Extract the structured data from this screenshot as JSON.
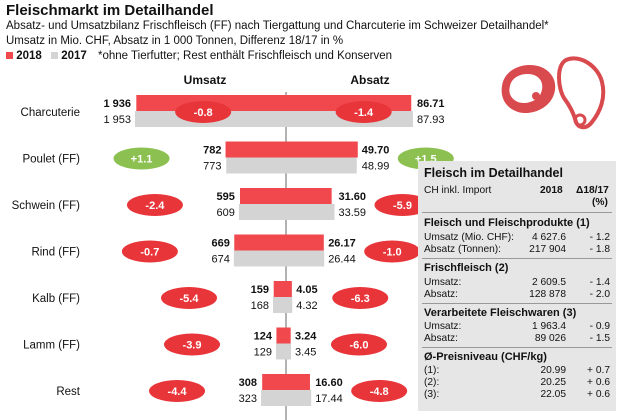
{
  "header": {
    "title": "Fleischmarkt im Detailhandel",
    "subtitle1": "Absatz- und Umsatzbilanz Frischfleisch (FF) nach Tiergattung und Charcuterie im Schweizer Detailhandel*",
    "subtitle2": "Umsatz in Mio. CHF, Absatz in 1 000 Tonnen, Differenz 18/17 in %",
    "legend_2018": "2018",
    "legend_2017": "2017",
    "footnote": "*ohne Tierfutter; Rest enthält Frischfleisch und Konserven"
  },
  "colors": {
    "y2018": "#f0484d",
    "y2017": "#d4d4d4",
    "pos": "#8cc050",
    "neg": "#e8353a",
    "panel": "#e6e6e6",
    "icon": "#d94a4f"
  },
  "chart_data": {
    "type": "bar",
    "umsatz_label": "Umsatz",
    "absatz_label": "Absatz",
    "rows": [
      {
        "name": "Charcuterie",
        "u2018": 1936,
        "u2017": 1953,
        "u2018_label": "1 936",
        "u2017_label": "1 953",
        "u_diff": "-0.8",
        "a2018": 86.71,
        "a2017": 87.93,
        "a2018_label": "86.71",
        "a2017_label": "87.93",
        "a_diff": "-1.4"
      },
      {
        "name": "Poulet (FF)",
        "u2018": 782,
        "u2017": 773,
        "u2018_label": "782",
        "u2017_label": "773",
        "u_diff": "+1.1",
        "a2018": 49.7,
        "a2017": 48.99,
        "a2018_label": "49.70",
        "a2017_label": "48.99",
        "a_diff": "+1.5"
      },
      {
        "name": "Schwein (FF)",
        "u2018": 595,
        "u2017": 609,
        "u2018_label": "595",
        "u2017_label": "609",
        "u_diff": "-2.4",
        "a2018": 31.6,
        "a2017": 33.59,
        "a2018_label": "31.60",
        "a2017_label": "33.59",
        "a_diff": "-5.9"
      },
      {
        "name": "Rind (FF)",
        "u2018": 669,
        "u2017": 674,
        "u2018_label": "669",
        "u2017_label": "674",
        "u_diff": "-0.7",
        "a2018": 26.17,
        "a2017": 26.44,
        "a2018_label": "26.17",
        "a2017_label": "26.44",
        "a_diff": "-1.0"
      },
      {
        "name": "Kalb (FF)",
        "u2018": 159,
        "u2017": 168,
        "u2018_label": "159",
        "u2017_label": "168",
        "u_diff": "-5.4",
        "a2018": 4.05,
        "a2017": 4.32,
        "a2018_label": "4.05",
        "a2017_label": "4.32",
        "a_diff": "-6.3"
      },
      {
        "name": "Lamm (FF)",
        "u2018": 124,
        "u2017": 129,
        "u2018_label": "124",
        "u2017_label": "129",
        "u_diff": "-3.9",
        "a2018": 3.24,
        "a2017": 3.45,
        "a2018_label": "3.24",
        "a2017_label": "3.45",
        "a_diff": "-6.0"
      },
      {
        "name": "Rest",
        "u2018": 308,
        "u2017": 323,
        "u2018_label": "308",
        "u2017_label": "323",
        "u_diff": "-4.4",
        "a2018": 16.6,
        "a2017": 17.44,
        "a2018_label": "16.60",
        "a2017_label": "17.44",
        "a_diff": "-4.8"
      }
    ]
  },
  "panel": {
    "title": "Fleisch im Detailhandel",
    "col_label": "CH inkl. Import",
    "col_year": "2018",
    "col_diff": "Δ18/17",
    "col_unit": "(%)",
    "sections": [
      {
        "heading": "Fleisch und Fleischprodukte (1)",
        "rows": [
          {
            "label": "Umsatz (Mio. CHF):",
            "value": "4 627.6",
            "diff": "- 1.2"
          },
          {
            "label": "Absatz (Tonnen):",
            "value": "217 904",
            "diff": "- 1.8"
          }
        ]
      },
      {
        "heading": "Frischfleisch (2)",
        "rows": [
          {
            "label": "Umsatz:",
            "value": "2 609.5",
            "diff": "- 1.4"
          },
          {
            "label": "Absatz:",
            "value": "128 878",
            "diff": "- 2.0"
          }
        ]
      },
      {
        "heading": "Verarbeitete Fleischwaren (3)",
        "rows": [
          {
            "label": "Umsatz:",
            "value": "1 963.4",
            "diff": "- 0.9"
          },
          {
            "label": "Absatz:",
            "value": "89 026",
            "diff": "- 1.5"
          }
        ]
      },
      {
        "heading": "Ø-Preisniveau (CHF/kg)",
        "rows": [
          {
            "label": "(1):",
            "value": "20.99",
            "diff": "+ 0.7"
          },
          {
            "label": "(2):",
            "value": "20.25",
            "diff": "+ 0.6"
          },
          {
            "label": "(3):",
            "value": "22.05",
            "diff": "+ 0.6"
          }
        ]
      }
    ]
  }
}
